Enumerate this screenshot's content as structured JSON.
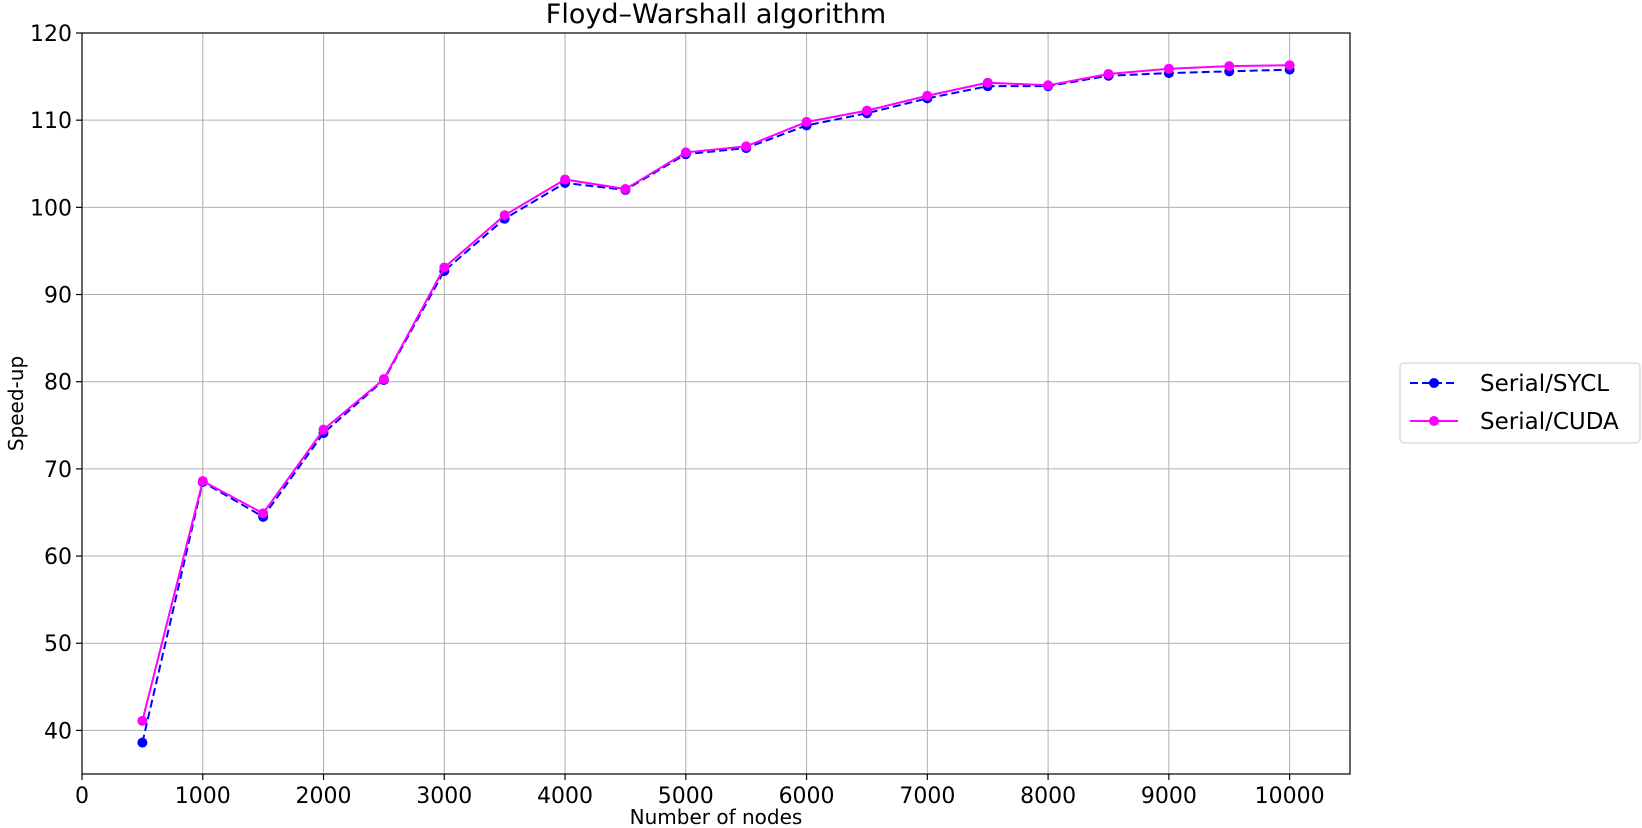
{
  "chart_data": {
    "type": "line",
    "title": "Floyd–Warshall algorithm",
    "xlabel": "Number of nodes",
    "ylabel": "Speed-up",
    "xlim": [
      0,
      10500
    ],
    "ylim": [
      35,
      120
    ],
    "xticks": [
      0,
      1000,
      2000,
      3000,
      4000,
      5000,
      6000,
      7000,
      8000,
      9000,
      10000
    ],
    "yticks": [
      40,
      50,
      60,
      70,
      80,
      90,
      100,
      110,
      120
    ],
    "grid": true,
    "legend_position": "right",
    "x": [
      500,
      1000,
      1500,
      2000,
      2500,
      3000,
      3500,
      4000,
      4500,
      5000,
      5500,
      6000,
      6500,
      7000,
      7500,
      8000,
      8500,
      9000,
      9500,
      10000
    ],
    "series": [
      {
        "name": "Serial/SYCL",
        "color": "#0000ff",
        "line_style": "dashed",
        "marker": "circle",
        "values": [
          38.6,
          68.5,
          64.5,
          74.1,
          80.2,
          92.7,
          98.7,
          102.8,
          102.0,
          106.1,
          106.8,
          109.4,
          110.8,
          112.5,
          113.9,
          113.9,
          115.1,
          115.4,
          115.6,
          115.8
        ]
      },
      {
        "name": "Serial/CUDA",
        "color": "#ff00ff",
        "line_style": "solid",
        "marker": "circle",
        "values": [
          41.1,
          68.6,
          64.9,
          74.5,
          80.3,
          93.1,
          99.1,
          103.2,
          102.1,
          106.3,
          107.0,
          109.8,
          111.1,
          112.8,
          114.3,
          114.0,
          115.3,
          115.9,
          116.2,
          116.3
        ]
      }
    ]
  }
}
